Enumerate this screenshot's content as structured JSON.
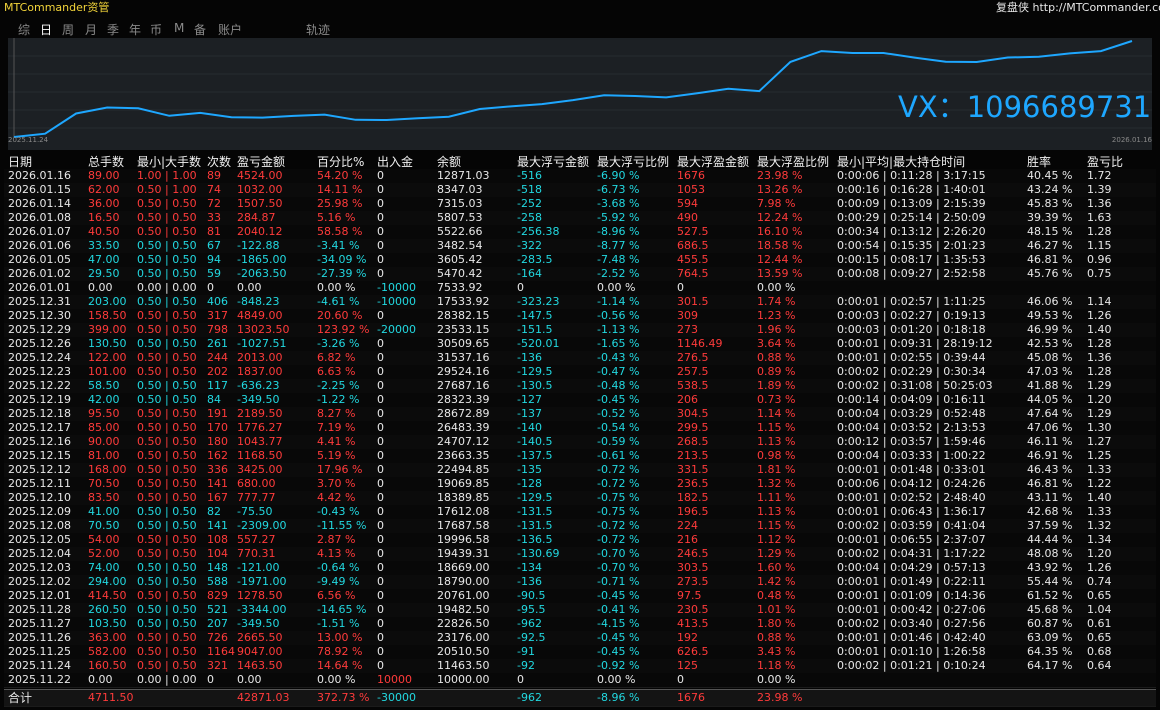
{
  "header": {
    "title": "MTCommander资管",
    "brand": "复盘侠",
    "url": "http://MTCommander.com"
  },
  "tabs": [
    "综",
    "日",
    "周",
    "月",
    "季",
    "年",
    "币",
    "M",
    "备",
    "账户",
    "轨迹"
  ],
  "active_tab": "日",
  "chart": {
    "start_label": "2025.11.24",
    "end_label": "2026.01.16",
    "watermark": "VX：1096689731",
    "color": "#1ea7ff"
  },
  "table": {
    "columns": [
      "日期",
      "总手数",
      "最小|大手数",
      "次数",
      "盈亏金额",
      "百分比%",
      "出入金",
      "余额",
      "最大浮亏金额",
      "最大浮亏比例",
      "最大浮盈金额",
      "最大浮盈比例",
      "最小|平均|最大持仓时间",
      "胜率",
      "盈亏比"
    ],
    "rows": [
      [
        "2026.01.16",
        "89.00",
        "1.00 | 1.00",
        "89",
        "4524.00",
        "54.20 %",
        "0",
        "12871.03",
        "-516",
        "-6.90 %",
        "1676",
        "23.98 %",
        "0:00:06 | 0:11:28 | 3:17:15",
        "40.45 %",
        "1.72"
      ],
      [
        "2026.01.15",
        "62.00",
        "0.50 | 1.00",
        "74",
        "1032.00",
        "14.11 %",
        "0",
        "8347.03",
        "-518",
        "-6.73 %",
        "1053",
        "13.26 %",
        "0:00:16 | 0:16:28 | 1:40:01",
        "43.24 %",
        "1.39"
      ],
      [
        "2026.01.14",
        "36.00",
        "0.50 | 0.50",
        "72",
        "1507.50",
        "25.98 %",
        "0",
        "7315.03",
        "-252",
        "-3.68 %",
        "594",
        "7.98 %",
        "0:00:09 | 0:13:09 | 2:15:39",
        "45.83 %",
        "1.36"
      ],
      [
        "2026.01.08",
        "16.50",
        "0.50 | 0.50",
        "33",
        "284.87",
        "5.16 %",
        "0",
        "5807.53",
        "-258",
        "-5.92 %",
        "490",
        "12.24 %",
        "0:00:29 | 0:25:14 | 2:50:09",
        "39.39 %",
        "1.63"
      ],
      [
        "2026.01.07",
        "40.50",
        "0.50 | 0.50",
        "81",
        "2040.12",
        "58.58 %",
        "0",
        "5522.66",
        "-256.38",
        "-8.96 %",
        "527.5",
        "16.10 %",
        "0:00:34 | 0:13:12 | 2:26:20",
        "48.15 %",
        "1.28"
      ],
      [
        "2026.01.06",
        "33.50",
        "0.50 | 0.50",
        "67",
        "-122.88",
        "-3.41 %",
        "0",
        "3482.54",
        "-322",
        "-8.77 %",
        "686.5",
        "18.58 %",
        "0:00:54 | 0:15:35 | 2:01:23",
        "46.27 %",
        "1.15"
      ],
      [
        "2026.01.05",
        "47.00",
        "0.50 | 0.50",
        "94",
        "-1865.00",
        "-34.09 %",
        "0",
        "3605.42",
        "-283.5",
        "-7.48 %",
        "455.5",
        "12.44 %",
        "0:00:15 | 0:08:17 | 1:35:53",
        "46.81 %",
        "0.96"
      ],
      [
        "2026.01.02",
        "29.50",
        "0.50 | 0.50",
        "59",
        "-2063.50",
        "-27.39 %",
        "0",
        "5470.42",
        "-164",
        "-2.52 %",
        "764.5",
        "13.59 %",
        "0:00:08 | 0:09:27 | 2:52:58",
        "45.76 %",
        "0.75"
      ],
      [
        "2026.01.01",
        "0.00",
        "0.00 | 0.00",
        "0",
        "0.00",
        "0.00 %",
        "-10000",
        "7533.92",
        "0",
        "0.00 %",
        "0",
        "0.00 %",
        null,
        null,
        null
      ],
      [
        "2025.12.31",
        "203.00",
        "0.50 | 0.50",
        "406",
        "-848.23",
        "-4.61 %",
        "-10000",
        "17533.92",
        "-323.23",
        "-1.14 %",
        "301.5",
        "1.74 %",
        "0:00:01 | 0:02:57 | 1:11:25",
        "46.06 %",
        "1.14"
      ],
      [
        "2025.12.30",
        "158.50",
        "0.50 | 0.50",
        "317",
        "4849.00",
        "20.60 %",
        "0",
        "28382.15",
        "-147.5",
        "-0.56 %",
        "309",
        "1.23 %",
        "0:00:03 | 0:02:27 | 0:19:13",
        "49.53 %",
        "1.26"
      ],
      [
        "2025.12.29",
        "399.00",
        "0.50 | 0.50",
        "798",
        "13023.50",
        "123.92 %",
        "-20000",
        "23533.15",
        "-151.5",
        "-1.13 %",
        "273",
        "1.96 %",
        "0:00:03 | 0:01:20 | 0:18:18",
        "46.99 %",
        "1.40"
      ],
      [
        "2025.12.26",
        "130.50",
        "0.50 | 0.50",
        "261",
        "-1027.51",
        "-3.26 %",
        "0",
        "30509.65",
        "-520.01",
        "-1.65 %",
        "1146.49",
        "3.64 %",
        "0:00:01 | 0:09:31 | 28:19:12",
        "42.53 %",
        "1.28"
      ],
      [
        "2025.12.24",
        "122.00",
        "0.50 | 0.50",
        "244",
        "2013.00",
        "6.82 %",
        "0",
        "31537.16",
        "-136",
        "-0.43 %",
        "276.5",
        "0.88 %",
        "0:00:01 | 0:02:55 | 0:39:44",
        "45.08 %",
        "1.36"
      ],
      [
        "2025.12.23",
        "101.00",
        "0.50 | 0.50",
        "202",
        "1837.00",
        "6.63 %",
        "0",
        "29524.16",
        "-129.5",
        "-0.47 %",
        "257.5",
        "0.89 %",
        "0:00:02 | 0:02:29 | 0:30:34",
        "47.03 %",
        "1.28"
      ],
      [
        "2025.12.22",
        "58.50",
        "0.50 | 0.50",
        "117",
        "-636.23",
        "-2.25 %",
        "0",
        "27687.16",
        "-130.5",
        "-0.48 %",
        "538.5",
        "1.89 %",
        "0:00:02 | 0:31:08 | 50:25:03",
        "41.88 %",
        "1.29"
      ],
      [
        "2025.12.19",
        "42.00",
        "0.50 | 0.50",
        "84",
        "-349.50",
        "-1.22 %",
        "0",
        "28323.39",
        "-127",
        "-0.45 %",
        "206",
        "0.73 %",
        "0:00:14 | 0:04:09 | 0:16:11",
        "44.05 %",
        "1.20"
      ],
      [
        "2025.12.18",
        "95.50",
        "0.50 | 0.50",
        "191",
        "2189.50",
        "8.27 %",
        "0",
        "28672.89",
        "-137",
        "-0.52 %",
        "304.5",
        "1.14 %",
        "0:00:04 | 0:03:29 | 0:52:48",
        "47.64 %",
        "1.29"
      ],
      [
        "2025.12.17",
        "85.00",
        "0.50 | 0.50",
        "170",
        "1776.27",
        "7.19 %",
        "0",
        "26483.39",
        "-140",
        "-0.54 %",
        "299.5",
        "1.15 %",
        "0:00:04 | 0:03:52 | 2:13:53",
        "47.06 %",
        "1.30"
      ],
      [
        "2025.12.16",
        "90.00",
        "0.50 | 0.50",
        "180",
        "1043.77",
        "4.41 %",
        "0",
        "24707.12",
        "-140.5",
        "-0.59 %",
        "268.5",
        "1.13 %",
        "0:00:12 | 0:03:57 | 1:59:46",
        "46.11 %",
        "1.27"
      ],
      [
        "2025.12.15",
        "81.00",
        "0.50 | 0.50",
        "162",
        "1168.50",
        "5.19 %",
        "0",
        "23663.35",
        "-137.5",
        "-0.61 %",
        "213.5",
        "0.98 %",
        "0:00:04 | 0:03:33 | 1:00:22",
        "46.91 %",
        "1.25"
      ],
      [
        "2025.12.12",
        "168.00",
        "0.50 | 0.50",
        "336",
        "3425.00",
        "17.96 %",
        "0",
        "22494.85",
        "-135",
        "-0.72 %",
        "331.5",
        "1.81 %",
        "0:00:01 | 0:01:48 | 0:33:01",
        "46.43 %",
        "1.33"
      ],
      [
        "2025.12.11",
        "70.50",
        "0.50 | 0.50",
        "141",
        "680.00",
        "3.70 %",
        "0",
        "19069.85",
        "-128",
        "-0.72 %",
        "236.5",
        "1.32 %",
        "0:00:06 | 0:04:12 | 0:24:26",
        "46.81 %",
        "1.22"
      ],
      [
        "2025.12.10",
        "83.50",
        "0.50 | 0.50",
        "167",
        "777.77",
        "4.42 %",
        "0",
        "18389.85",
        "-129.5",
        "-0.75 %",
        "182.5",
        "1.11 %",
        "0:00:01 | 0:02:52 | 2:48:40",
        "43.11 %",
        "1.40"
      ],
      [
        "2025.12.09",
        "41.00",
        "0.50 | 0.50",
        "82",
        "-75.50",
        "-0.43 %",
        "0",
        "17612.08",
        "-131.5",
        "-0.75 %",
        "196.5",
        "1.13 %",
        "0:00:01 | 0:06:43 | 1:36:17",
        "42.68 %",
        "1.33"
      ],
      [
        "2025.12.08",
        "70.50",
        "0.50 | 0.50",
        "141",
        "-2309.00",
        "-11.55 %",
        "0",
        "17687.58",
        "-131.5",
        "-0.72 %",
        "224",
        "1.15 %",
        "0:00:02 | 0:03:59 | 0:41:04",
        "37.59 %",
        "1.32"
      ],
      [
        "2025.12.05",
        "54.00",
        "0.50 | 0.50",
        "108",
        "557.27",
        "2.87 %",
        "0",
        "19996.58",
        "-136.5",
        "-0.72 %",
        "216",
        "1.12 %",
        "0:00:01 | 0:06:55 | 2:37:07",
        "44.44 %",
        "1.34"
      ],
      [
        "2025.12.04",
        "52.00",
        "0.50 | 0.50",
        "104",
        "770.31",
        "4.13 %",
        "0",
        "19439.31",
        "-130.69",
        "-0.70 %",
        "246.5",
        "1.29 %",
        "0:00:02 | 0:04:31 | 1:17:22",
        "48.08 %",
        "1.20"
      ],
      [
        "2025.12.03",
        "74.00",
        "0.50 | 0.50",
        "148",
        "-121.00",
        "-0.64 %",
        "0",
        "18669.00",
        "-134",
        "-0.70 %",
        "303.5",
        "1.60 %",
        "0:00:04 | 0:04:29 | 0:57:13",
        "43.92 %",
        "1.26"
      ],
      [
        "2025.12.02",
        "294.00",
        "0.50 | 0.50",
        "588",
        "-1971.00",
        "-9.49 %",
        "0",
        "18790.00",
        "-136",
        "-0.71 %",
        "273.5",
        "1.42 %",
        "0:00:01 | 0:01:49 | 0:22:11",
        "55.44 %",
        "0.74"
      ],
      [
        "2025.12.01",
        "414.50",
        "0.50 | 0.50",
        "829",
        "1278.50",
        "6.56 %",
        "0",
        "20761.00",
        "-90.5",
        "-0.45 %",
        "97.5",
        "0.48 %",
        "0:00:01 | 0:01:09 | 0:14:36",
        "61.52 %",
        "0.65"
      ],
      [
        "2025.11.28",
        "260.50",
        "0.50 | 0.50",
        "521",
        "-3344.00",
        "-14.65 %",
        "0",
        "19482.50",
        "-95.5",
        "-0.41 %",
        "230.5",
        "1.01 %",
        "0:00:01 | 0:00:42 | 0:27:06",
        "45.68 %",
        "1.04"
      ],
      [
        "2025.11.27",
        "103.50",
        "0.50 | 0.50",
        "207",
        "-349.50",
        "-1.51 %",
        "0",
        "22826.50",
        "-962",
        "-4.15 %",
        "413.5",
        "1.80 %",
        "0:00:02 | 0:03:40 | 0:27:56",
        "60.87 %",
        "0.61"
      ],
      [
        "2025.11.26",
        "363.00",
        "0.50 | 0.50",
        "726",
        "2665.50",
        "13.00 %",
        "0",
        "23176.00",
        "-92.5",
        "-0.45 %",
        "192",
        "0.88 %",
        "0:00:01 | 0:01:46 | 0:42:40",
        "63.09 %",
        "0.65"
      ],
      [
        "2025.11.25",
        "582.00",
        "0.50 | 0.50",
        "1164",
        "9047.00",
        "78.92 %",
        "0",
        "20510.50",
        "-91",
        "-0.45 %",
        "626.5",
        "3.43 %",
        "0:00:01 | 0:01:10 | 1:26:58",
        "64.35 %",
        "0.68"
      ],
      [
        "2025.11.24",
        "160.50",
        "0.50 | 0.50",
        "321",
        "1463.50",
        "14.64 %",
        "0",
        "11463.50",
        "-92",
        "-0.92 %",
        "125",
        "1.18 %",
        "0:00:02 | 0:01:21 | 0:10:24",
        "64.17 %",
        "0.64"
      ],
      [
        "2025.11.22",
        "0.00",
        "0.00 | 0.00",
        "0",
        "0.00",
        "0.00 %",
        "10000",
        "10000.00",
        "0",
        "0.00 %",
        "0",
        "0.00 %",
        null,
        null,
        null
      ]
    ],
    "total": [
      "合计",
      "4711.50",
      null,
      null,
      "42871.03",
      "372.73 %",
      "-30000",
      null,
      "-962",
      "-8.96 %",
      "1676",
      "23.98 %",
      null,
      null,
      null
    ]
  }
}
